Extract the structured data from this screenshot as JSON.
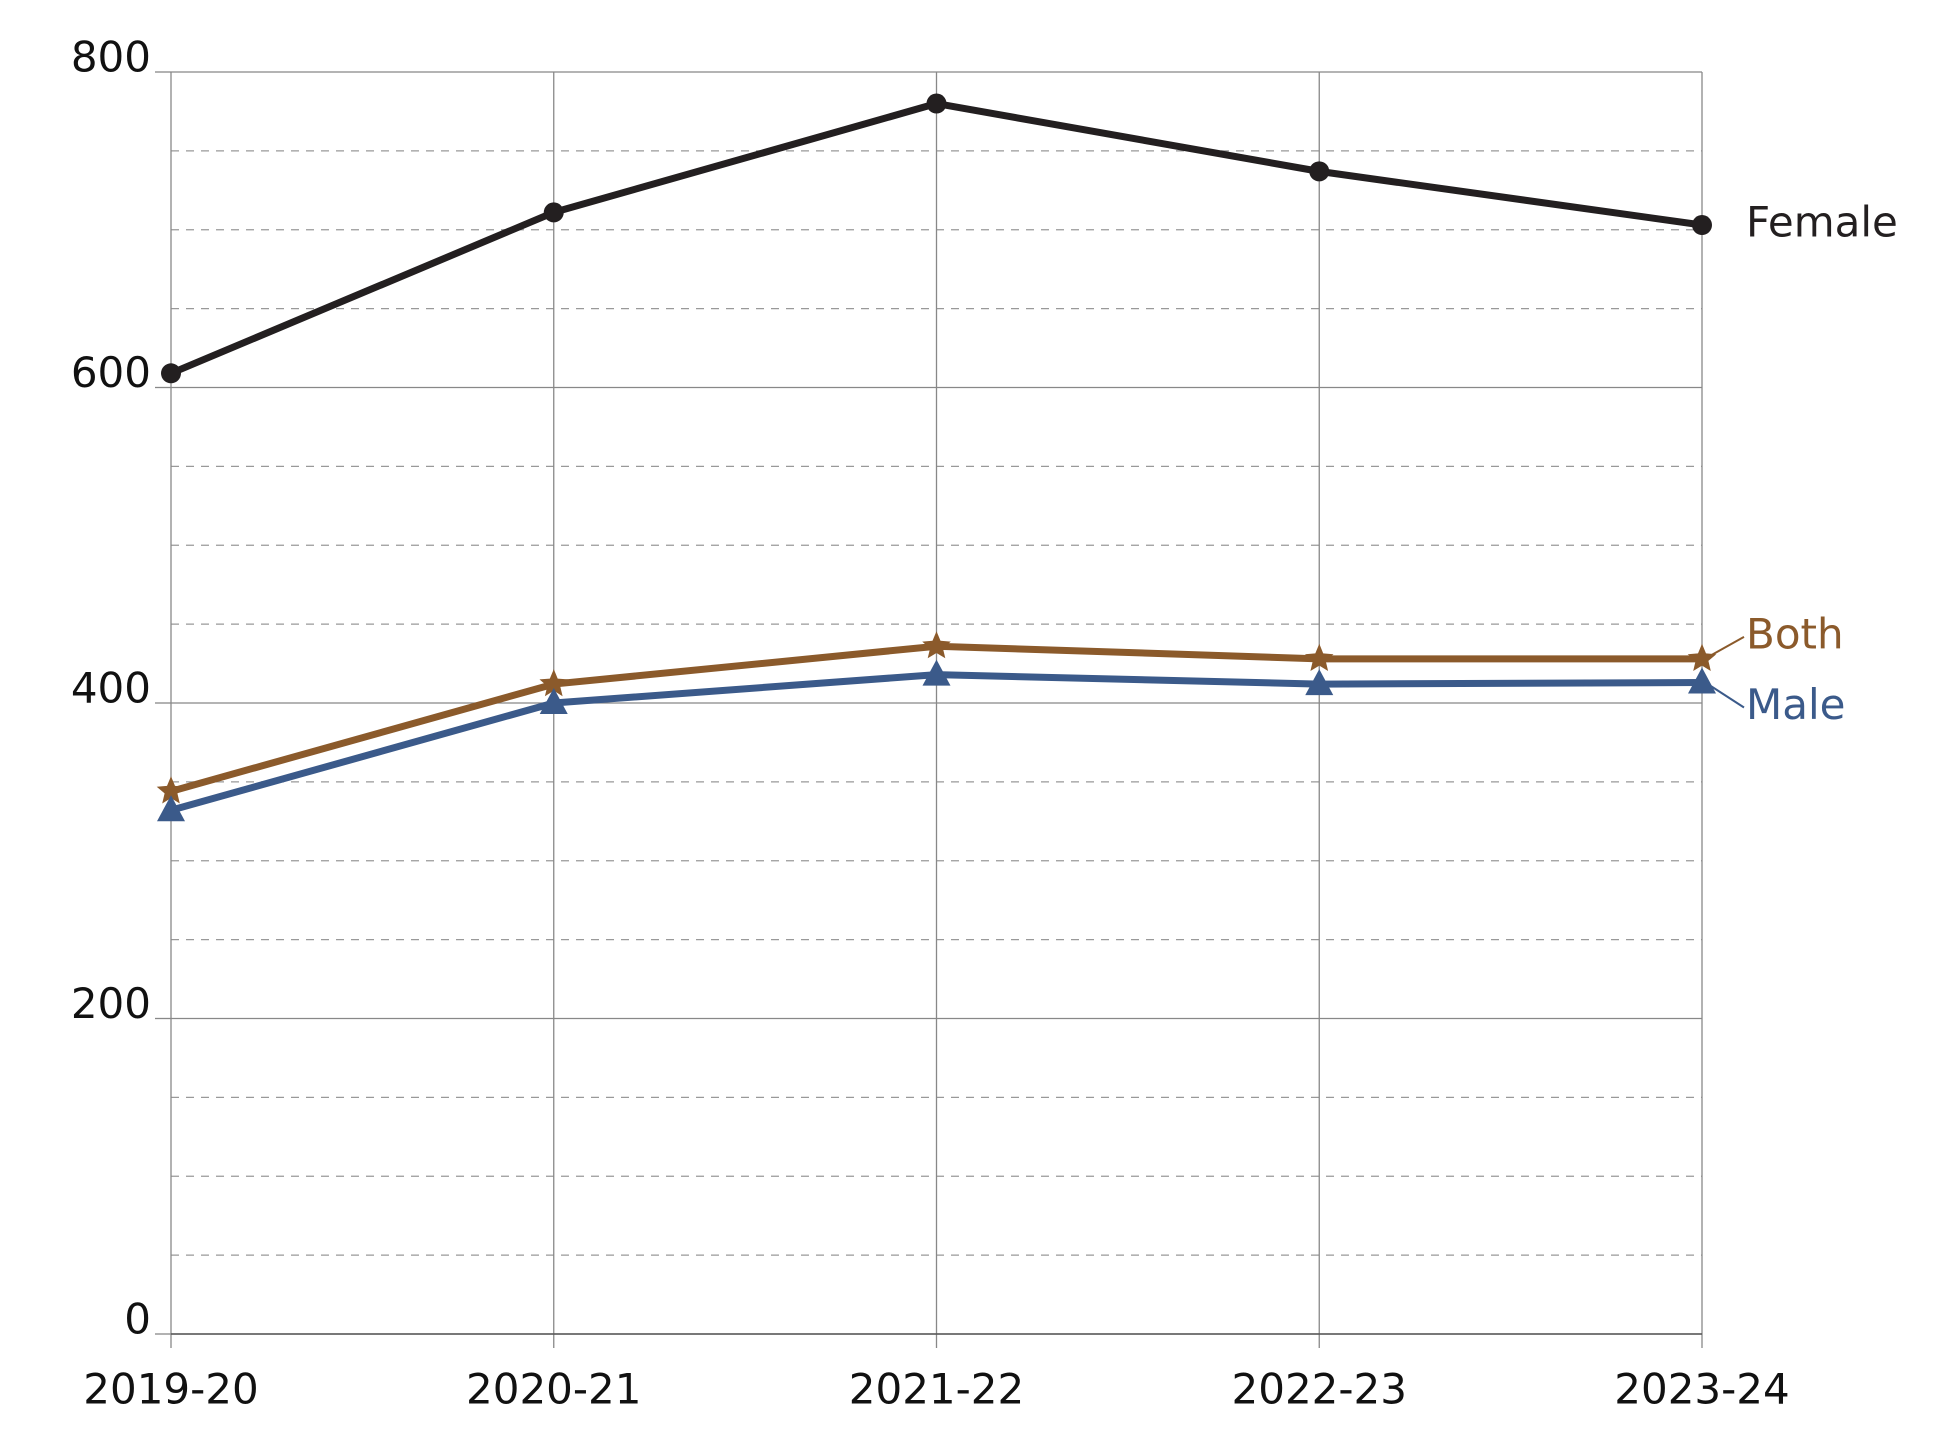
{
  "chart_data": {
    "type": "line",
    "categories": [
      "2019-20",
      "2020-21",
      "2021-22",
      "2022-23",
      "2023-24"
    ],
    "series": [
      {
        "name": "Female",
        "color": "#231f20",
        "marker": "circle",
        "values": [
          609,
          711,
          780,
          737,
          703
        ]
      },
      {
        "name": "Both",
        "color": "#8b5a2b",
        "marker": "star",
        "values": [
          344,
          412,
          436,
          428,
          428
        ]
      },
      {
        "name": "Male",
        "color": "#3b5a8a",
        "marker": "triangle",
        "values": [
          332,
          400,
          418,
          412,
          413
        ]
      }
    ],
    "ylim": [
      0,
      800
    ],
    "yticks": [
      0,
      200,
      400,
      600,
      800
    ],
    "minor_yticks": [
      50,
      100,
      150,
      250,
      300,
      350,
      450,
      500,
      550,
      650,
      700,
      750
    ],
    "grid": true
  }
}
